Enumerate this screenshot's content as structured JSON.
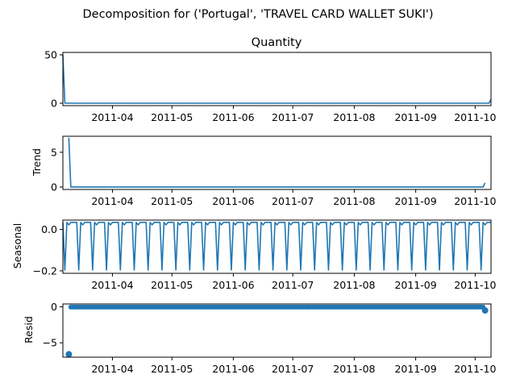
{
  "figure": {
    "suptitle": "Decomposition for ('Portugal', 'TRAVEL CARD WALLET SUKI')"
  },
  "chart_data": [
    {
      "type": "line",
      "title": "Quantity",
      "xlabel": "",
      "ylabel": "",
      "x_start": "2011-03-07",
      "x_end": "2011-10-09",
      "ylim": [
        -2.5,
        52.5
      ],
      "yticks": [
        0,
        50
      ],
      "ytick_labels": [
        "0",
        "50"
      ],
      "xticks": [
        "2011-04-01",
        "2011-05-01",
        "2011-06-01",
        "2011-07-01",
        "2011-08-01",
        "2011-09-01",
        "2011-10-01"
      ],
      "xtick_labels": [
        "2011-04",
        "2011-05",
        "2011-06",
        "2011-07",
        "2011-08",
        "2011-09",
        "2011-10"
      ],
      "series": [
        {
          "color": "#1f77b4",
          "points": [
            [
              "2011-03-07",
              50
            ],
            [
              "2011-03-08",
              0
            ],
            [
              "2011-10-08",
              0
            ],
            [
              "2011-10-09",
              4
            ]
          ]
        }
      ]
    },
    {
      "type": "line",
      "title": "",
      "xlabel": "",
      "ylabel": "Trend",
      "x_start": "2011-03-07",
      "x_end": "2011-10-09",
      "ylim": [
        -0.35,
        7.3
      ],
      "yticks": [
        0,
        5
      ],
      "ytick_labels": [
        "0",
        "5"
      ],
      "xticks": [
        "2011-04-01",
        "2011-05-01",
        "2011-06-01",
        "2011-07-01",
        "2011-08-01",
        "2011-09-01",
        "2011-10-01"
      ],
      "xtick_labels": [
        "2011-04",
        "2011-05",
        "2011-06",
        "2011-07",
        "2011-08",
        "2011-09",
        "2011-10"
      ],
      "series": [
        {
          "color": "#1f77b4",
          "points": [
            [
              "2011-03-10",
              7.1
            ],
            [
              "2011-03-11",
              0
            ],
            [
              "2011-10-05",
              0
            ],
            [
              "2011-10-06",
              0.6
            ]
          ]
        }
      ]
    },
    {
      "type": "line",
      "title": "",
      "xlabel": "",
      "ylabel": "Seasonal",
      "x_start": "2011-03-07",
      "x_end": "2011-10-09",
      "ylim": [
        -0.212,
        0.045
      ],
      "yticks": [
        -0.2,
        0.0
      ],
      "ytick_labels": [
        "−0.2",
        "0.0"
      ],
      "xticks": [
        "2011-04-01",
        "2011-05-01",
        "2011-06-01",
        "2011-07-01",
        "2011-08-01",
        "2011-09-01",
        "2011-10-01"
      ],
      "xtick_labels": [
        "2011-04",
        "2011-05",
        "2011-06",
        "2011-07",
        "2011-08",
        "2011-09",
        "2011-10"
      ],
      "series": [
        {
          "color": "#1f77b4",
          "weekly_pattern": [
            0.034,
            -0.196,
            0.034,
            0.022,
            0.034,
            0.034,
            0.034
          ],
          "start": "2011-03-07",
          "end": "2011-10-09"
        }
      ]
    },
    {
      "type": "scatter",
      "title": "",
      "xlabel": "",
      "ylabel": "Resid",
      "x_start": "2011-03-07",
      "x_end": "2011-10-09",
      "ylim": [
        -7.0,
        0.4
      ],
      "yticks": [
        -5,
        0
      ],
      "ytick_labels": [
        "−5",
        "0"
      ],
      "xticks": [
        "2011-04-01",
        "2011-05-01",
        "2011-06-01",
        "2011-07-01",
        "2011-08-01",
        "2011-09-01",
        "2011-10-01"
      ],
      "xtick_labels": [
        "2011-04",
        "2011-05",
        "2011-06",
        "2011-07",
        "2011-08",
        "2011-09",
        "2011-10"
      ],
      "series": [
        {
          "color": "#1f77b4",
          "baseline_value": -0.03,
          "baseline_start": "2011-03-11",
          "baseline_end": "2011-10-05",
          "outliers": [
            [
              "2011-03-10",
              -6.6
            ],
            [
              "2011-10-06",
              -0.5
            ]
          ]
        }
      ]
    }
  ]
}
